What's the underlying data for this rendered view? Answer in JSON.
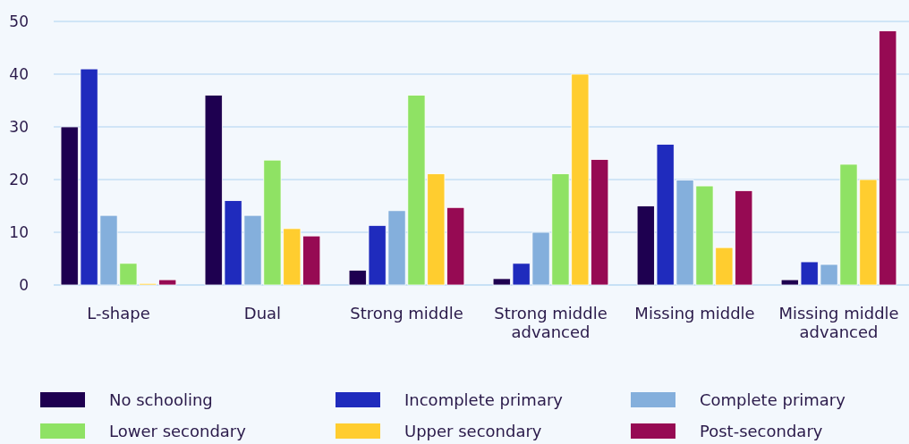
{
  "chart_data": {
    "type": "bar",
    "categories": [
      "L-shape",
      "Dual",
      "Strong middle",
      "Strong middle advanced",
      "Missing middle",
      "Missing middle advanced"
    ],
    "series": [
      {
        "name": "No schooling",
        "color": "#1e0050",
        "values": [
          30,
          36,
          2.8,
          1.2,
          15,
          1
        ]
      },
      {
        "name": "Incomplete primary",
        "color": "#1f2bbd",
        "values": [
          41,
          16,
          11.3,
          4.1,
          26.7,
          4.4
        ]
      },
      {
        "name": "Complete primary",
        "color": "#84afdc",
        "values": [
          13.2,
          13.2,
          14.1,
          10,
          19.9,
          3.9
        ]
      },
      {
        "name": "Lower secondary",
        "color": "#8fe264",
        "values": [
          4.1,
          23.7,
          36,
          21.1,
          18.8,
          22.9
        ]
      },
      {
        "name": "Upper secondary",
        "color": "#ffcd2f",
        "values": [
          0.3,
          10.7,
          21.1,
          40,
          7.1,
          20
        ]
      },
      {
        "name": "Post-secondary",
        "color": "#960a53",
        "values": [
          1,
          9.3,
          14.7,
          23.8,
          17.9,
          48.2
        ]
      }
    ],
    "ylim": [
      0,
      50
    ],
    "yticks": [
      0,
      10,
      20,
      30,
      40,
      50
    ],
    "grid": "y",
    "legend": "bottom"
  }
}
